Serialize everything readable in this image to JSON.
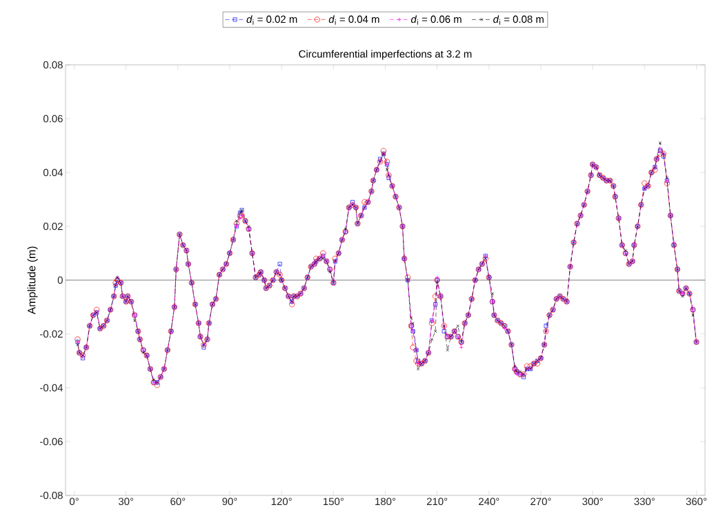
{
  "chart_data": {
    "type": "line",
    "title": "Circumferential imperfections at 3.2 m",
    "ylabel": "Amplitude (m)",
    "xlim": [
      -5,
      365
    ],
    "ylim": [
      -0.08,
      0.08
    ],
    "xticks": [
      {
        "value": 0,
        "label": "0°"
      },
      {
        "value": 30,
        "label": "30°"
      },
      {
        "value": 60,
        "label": "60°"
      },
      {
        "value": 90,
        "label": "90°"
      },
      {
        "value": 120,
        "label": "120°"
      },
      {
        "value": 150,
        "label": "150°"
      },
      {
        "value": 180,
        "label": "180°"
      },
      {
        "value": 210,
        "label": "210°"
      },
      {
        "value": 240,
        "label": "240°"
      },
      {
        "value": 270,
        "label": "270°"
      },
      {
        "value": 300,
        "label": "300°"
      },
      {
        "value": 330,
        "label": "330°"
      },
      {
        "value": 360,
        "label": "360°"
      }
    ],
    "yticks": [
      -0.08,
      -0.06,
      -0.04,
      -0.02,
      0,
      0.02,
      0.04,
      0.06,
      0.08
    ],
    "legend": "top",
    "line_style": "dashed",
    "grid": false,
    "ref_lines": [
      {
        "axis": "y",
        "value": 0,
        "color": "#808080"
      }
    ],
    "x": [
      2,
      3,
      5,
      7,
      9,
      11,
      13,
      15,
      17,
      19,
      21,
      23,
      24,
      25,
      27,
      28,
      30,
      31,
      33,
      35,
      37,
      38,
      40,
      42,
      44,
      46,
      48,
      50,
      52,
      54,
      56,
      58,
      59,
      61,
      63,
      65,
      66,
      68,
      70,
      72,
      73,
      75,
      77,
      78,
      80,
      82,
      84,
      86,
      88,
      90,
      92,
      94,
      96,
      97,
      99,
      101,
      103,
      105,
      107,
      108,
      110,
      111,
      113,
      115,
      117,
      119,
      120,
      122,
      124,
      126,
      127,
      129,
      131,
      133,
      135,
      137,
      139,
      140,
      142,
      144,
      146,
      148,
      150,
      151,
      153,
      155,
      157,
      159,
      161,
      163,
      164,
      166,
      168,
      170,
      172,
      173,
      175,
      177,
      179,
      181,
      182,
      184,
      186,
      188,
      190,
      191,
      193,
      195,
      196,
      198,
      199,
      201,
      203,
      205,
      207,
      209,
      210,
      212,
      214,
      216,
      218,
      220,
      222,
      224,
      226,
      228,
      230,
      232,
      234,
      236,
      238,
      240,
      242,
      243,
      245,
      247,
      249,
      251,
      253,
      255,
      256,
      258,
      260,
      262,
      264,
      266,
      268,
      270,
      272,
      273,
      275,
      277,
      279,
      281,
      283,
      285,
      287,
      289,
      291,
      293,
      295,
      297,
      299,
      300,
      302,
      304,
      306,
      308,
      310,
      312,
      313,
      315,
      317,
      319,
      321,
      323,
      324,
      326,
      328,
      330,
      332,
      334,
      336,
      337,
      339,
      341,
      343,
      345,
      347,
      349,
      350,
      352,
      354,
      356,
      358,
      360
    ],
    "series": [
      {
        "name": "*d*$_{i}$ = 0.02 m",
        "color": "#0000ff",
        "marker": "square",
        "values": [
          -0.023,
          -0.027,
          -0.029,
          -0.025,
          -0.017,
          -0.013,
          -0.012,
          -0.018,
          -0.017,
          -0.015,
          -0.011,
          -0.006,
          -0.002,
          0.0,
          -0.001,
          -0.006,
          -0.008,
          -0.006,
          -0.008,
          -0.013,
          -0.019,
          -0.022,
          -0.026,
          -0.028,
          -0.033,
          -0.038,
          -0.038,
          -0.036,
          -0.033,
          -0.026,
          -0.019,
          -0.01,
          0.004,
          0.017,
          0.013,
          0.011,
          0.006,
          -0.001,
          -0.009,
          -0.016,
          -0.021,
          -0.025,
          -0.022,
          -0.016,
          -0.009,
          -0.007,
          0.002,
          0.004,
          0.006,
          0.01,
          0.015,
          0.02,
          0.025,
          0.026,
          0.022,
          0.019,
          0.01,
          0.001,
          0.002,
          0.003,
          0.0,
          -0.003,
          -0.002,
          0.0,
          0.003,
          0.006,
          0.0,
          -0.003,
          -0.006,
          -0.008,
          -0.006,
          -0.006,
          -0.005,
          -0.003,
          0.001,
          0.005,
          0.006,
          0.007,
          0.008,
          0.009,
          0.007,
          0.004,
          -0.001,
          0.007,
          0.01,
          0.015,
          0.018,
          0.027,
          0.029,
          0.027,
          0.021,
          0.024,
          0.027,
          0.029,
          0.033,
          0.037,
          0.041,
          0.045,
          0.047,
          0.043,
          0.038,
          0.035,
          0.031,
          0.027,
          0.02,
          0.008,
          0.0,
          -0.017,
          -0.019,
          -0.026,
          -0.03,
          -0.031,
          -0.03,
          -0.027,
          -0.015,
          -0.009,
          0.0,
          -0.006,
          -0.019,
          -0.021,
          -0.021,
          -0.019,
          -0.021,
          -0.023,
          -0.016,
          -0.013,
          -0.007,
          0.0,
          0.004,
          0.006,
          0.009,
          0.001,
          -0.008,
          -0.013,
          -0.015,
          -0.016,
          -0.017,
          -0.019,
          -0.024,
          -0.033,
          -0.034,
          -0.035,
          -0.036,
          -0.033,
          -0.033,
          -0.031,
          -0.03,
          -0.029,
          -0.024,
          -0.017,
          -0.013,
          -0.011,
          -0.007,
          -0.006,
          -0.007,
          -0.008,
          0.005,
          0.014,
          0.021,
          0.024,
          0.028,
          0.033,
          0.039,
          0.043,
          0.042,
          0.039,
          0.038,
          0.037,
          0.037,
          0.035,
          0.031,
          0.023,
          0.013,
          0.01,
          0.006,
          0.007,
          0.013,
          0.02,
          0.028,
          0.034,
          0.035,
          0.04,
          0.042,
          0.045,
          0.048,
          0.046,
          0.037,
          0.024,
          0.013,
          0.004,
          -0.004,
          -0.005,
          -0.003,
          -0.005,
          -0.011,
          -0.023
        ]
      },
      {
        "name": "*d*$_{i}$ = 0.04 m",
        "color": "#ff0000",
        "marker": "circle",
        "values": [
          -0.022,
          -0.027,
          -0.028,
          -0.025,
          -0.017,
          -0.013,
          -0.011,
          -0.018,
          -0.017,
          -0.015,
          -0.011,
          -0.006,
          -0.001,
          0.0,
          -0.001,
          -0.006,
          -0.008,
          -0.006,
          -0.008,
          -0.013,
          -0.019,
          -0.022,
          -0.026,
          -0.028,
          -0.033,
          -0.038,
          -0.039,
          -0.036,
          -0.033,
          -0.026,
          -0.019,
          -0.01,
          0.004,
          0.017,
          0.013,
          0.011,
          0.006,
          -0.001,
          -0.009,
          -0.016,
          -0.021,
          -0.024,
          -0.022,
          -0.016,
          -0.009,
          -0.007,
          0.002,
          0.004,
          0.006,
          0.01,
          0.015,
          0.021,
          0.024,
          0.024,
          0.022,
          0.019,
          0.01,
          0.001,
          0.002,
          0.003,
          0.0,
          -0.003,
          -0.002,
          0.0,
          0.003,
          0.002,
          0.0,
          -0.003,
          -0.006,
          -0.009,
          -0.006,
          -0.006,
          -0.005,
          -0.003,
          0.001,
          0.005,
          0.006,
          0.008,
          0.008,
          0.01,
          0.007,
          0.004,
          -0.001,
          0.008,
          0.01,
          0.015,
          0.018,
          0.027,
          0.028,
          0.027,
          0.021,
          0.024,
          0.029,
          0.029,
          0.033,
          0.037,
          0.041,
          0.044,
          0.048,
          0.044,
          0.039,
          0.035,
          0.031,
          0.027,
          0.02,
          0.008,
          0.001,
          -0.017,
          -0.025,
          -0.03,
          -0.031,
          -0.031,
          -0.03,
          -0.027,
          -0.016,
          -0.006,
          0.0,
          -0.006,
          -0.017,
          -0.021,
          -0.021,
          -0.019,
          -0.021,
          -0.023,
          -0.016,
          -0.013,
          -0.007,
          0.0,
          0.004,
          0.006,
          0.008,
          0.001,
          -0.008,
          -0.013,
          -0.015,
          -0.016,
          -0.017,
          -0.019,
          -0.024,
          -0.033,
          -0.034,
          -0.035,
          -0.035,
          -0.032,
          -0.032,
          -0.031,
          -0.031,
          -0.029,
          -0.024,
          -0.019,
          -0.013,
          -0.011,
          -0.007,
          -0.006,
          -0.007,
          -0.008,
          0.005,
          0.014,
          0.021,
          0.024,
          0.028,
          0.033,
          0.039,
          0.043,
          0.042,
          0.039,
          0.038,
          0.037,
          0.037,
          0.035,
          0.031,
          0.023,
          0.013,
          0.01,
          0.006,
          0.007,
          0.013,
          0.02,
          0.028,
          0.036,
          0.035,
          0.04,
          0.041,
          0.045,
          0.047,
          0.047,
          0.036,
          0.024,
          0.013,
          0.004,
          -0.004,
          -0.005,
          -0.003,
          -0.005,
          -0.011,
          -0.023
        ]
      },
      {
        "name": "*d*$_{i}$ = 0.06 m",
        "color": "#ff00ff",
        "marker": "plus",
        "values": [
          -0.023,
          -0.027,
          -0.028,
          -0.025,
          -0.017,
          -0.013,
          -0.012,
          -0.018,
          -0.017,
          -0.015,
          -0.011,
          -0.006,
          -0.002,
          0.001,
          -0.001,
          -0.006,
          -0.008,
          -0.006,
          -0.008,
          -0.013,
          -0.019,
          -0.022,
          -0.026,
          -0.028,
          -0.033,
          -0.038,
          -0.038,
          -0.036,
          -0.033,
          -0.026,
          -0.019,
          -0.01,
          0.004,
          0.017,
          0.013,
          0.011,
          0.006,
          -0.001,
          -0.009,
          -0.016,
          -0.021,
          -0.024,
          -0.022,
          -0.016,
          -0.009,
          -0.007,
          0.002,
          0.004,
          0.006,
          0.01,
          0.015,
          0.02,
          0.023,
          0.024,
          0.022,
          0.019,
          0.01,
          0.001,
          0.002,
          0.003,
          0.0,
          -0.003,
          -0.002,
          0.0,
          0.003,
          0.002,
          0.0,
          -0.003,
          -0.006,
          -0.008,
          -0.006,
          -0.006,
          -0.005,
          -0.003,
          0.001,
          0.005,
          0.006,
          0.007,
          0.008,
          0.009,
          0.007,
          0.004,
          -0.001,
          0.007,
          0.01,
          0.015,
          0.018,
          0.027,
          0.028,
          0.027,
          0.021,
          0.024,
          0.027,
          0.029,
          0.033,
          0.037,
          0.041,
          0.044,
          0.047,
          0.043,
          0.039,
          0.035,
          0.031,
          0.027,
          0.02,
          0.008,
          0.0,
          -0.017,
          -0.019,
          -0.026,
          -0.031,
          -0.031,
          -0.03,
          -0.027,
          -0.015,
          -0.009,
          0.001,
          -0.006,
          -0.017,
          -0.021,
          -0.021,
          -0.019,
          -0.021,
          -0.025,
          -0.016,
          -0.013,
          -0.007,
          0.0,
          0.004,
          0.006,
          0.009,
          0.001,
          -0.008,
          -0.013,
          -0.015,
          -0.016,
          -0.018,
          -0.019,
          -0.024,
          -0.033,
          -0.035,
          -0.035,
          -0.035,
          -0.033,
          -0.033,
          -0.031,
          -0.03,
          -0.029,
          -0.024,
          -0.019,
          -0.013,
          -0.011,
          -0.007,
          -0.006,
          -0.007,
          -0.008,
          0.005,
          0.014,
          0.021,
          0.024,
          0.028,
          0.033,
          0.039,
          0.043,
          0.042,
          0.039,
          0.038,
          0.037,
          0.037,
          0.035,
          0.031,
          0.023,
          0.013,
          0.01,
          0.006,
          0.007,
          0.013,
          0.02,
          0.028,
          0.034,
          0.035,
          0.04,
          0.042,
          0.045,
          0.049,
          0.047,
          0.037,
          0.024,
          0.014,
          0.004,
          -0.004,
          -0.005,
          -0.003,
          -0.005,
          -0.011,
          -0.023
        ]
      },
      {
        "name": "*d*$_{i}$ = 0.08 m",
        "color": "#000000",
        "marker": "cross",
        "values": [
          -0.024,
          -0.027,
          -0.028,
          -0.025,
          -0.017,
          -0.013,
          -0.012,
          -0.018,
          -0.017,
          -0.015,
          -0.011,
          -0.006,
          -0.002,
          0.001,
          -0.001,
          -0.006,
          -0.008,
          -0.006,
          -0.008,
          -0.015,
          -0.019,
          -0.022,
          -0.027,
          -0.028,
          -0.033,
          -0.037,
          -0.038,
          -0.036,
          -0.033,
          -0.026,
          -0.019,
          -0.01,
          0.004,
          0.017,
          0.013,
          0.011,
          0.006,
          -0.001,
          -0.009,
          -0.016,
          -0.021,
          -0.024,
          -0.022,
          -0.016,
          -0.009,
          -0.007,
          0.002,
          0.004,
          0.006,
          0.01,
          0.015,
          0.022,
          0.025,
          0.026,
          0.022,
          0.02,
          0.01,
          0.001,
          0.002,
          0.003,
          0.0,
          -0.003,
          -0.002,
          0.0,
          0.003,
          0.002,
          0.0,
          -0.003,
          -0.006,
          -0.008,
          -0.006,
          -0.006,
          -0.005,
          -0.003,
          0.001,
          0.005,
          0.006,
          0.007,
          0.008,
          0.008,
          0.007,
          0.003,
          -0.001,
          0.007,
          0.01,
          0.015,
          0.019,
          0.027,
          0.028,
          0.027,
          0.021,
          0.024,
          0.027,
          0.029,
          0.033,
          0.037,
          0.041,
          0.044,
          0.047,
          0.041,
          0.039,
          0.035,
          0.031,
          0.027,
          0.02,
          0.008,
          0.0,
          -0.014,
          -0.016,
          -0.026,
          -0.033,
          -0.031,
          -0.03,
          -0.027,
          -0.022,
          -0.019,
          -0.001,
          -0.006,
          -0.017,
          -0.026,
          -0.021,
          -0.019,
          -0.017,
          -0.023,
          -0.016,
          -0.013,
          -0.007,
          0.0,
          0.004,
          0.006,
          0.008,
          0.001,
          -0.005,
          -0.013,
          -0.015,
          -0.016,
          -0.017,
          -0.019,
          -0.024,
          -0.032,
          -0.034,
          -0.034,
          -0.035,
          -0.033,
          -0.033,
          -0.031,
          -0.03,
          -0.029,
          -0.024,
          -0.019,
          -0.013,
          -0.011,
          -0.007,
          -0.006,
          -0.007,
          -0.008,
          0.005,
          0.014,
          0.021,
          0.024,
          0.028,
          0.033,
          0.039,
          0.043,
          0.042,
          0.039,
          0.038,
          0.037,
          0.037,
          0.035,
          0.031,
          0.023,
          0.013,
          0.011,
          0.006,
          0.007,
          0.013,
          0.02,
          0.028,
          0.034,
          0.035,
          0.04,
          0.042,
          0.045,
          0.051,
          0.047,
          0.038,
          0.024,
          0.013,
          0.004,
          -0.004,
          -0.006,
          -0.003,
          -0.005,
          -0.013,
          -0.023
        ]
      }
    ]
  }
}
